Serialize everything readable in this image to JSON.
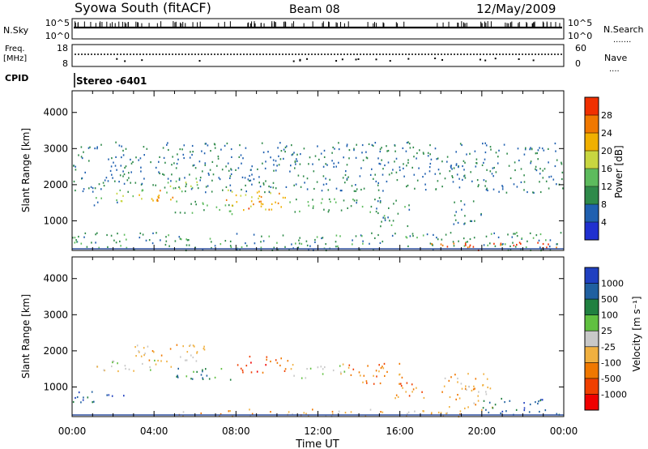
{
  "header": {
    "station": "Syowa South (fitACF)",
    "beam": "Beam 08",
    "date": "12/May/2009"
  },
  "status": {
    "left_labels": {
      "nsky": "N.Sky",
      "freq_line1": "Freq.",
      "freq_line2": "[MHz]",
      "cpid": "CPID"
    },
    "right_labels": {
      "nsearch": "N.Search",
      "nave": "Nave"
    },
    "nsky_ticks": [
      "10^5",
      "10^0"
    ],
    "nsearch_ticks": [
      "10^5",
      "10^0"
    ],
    "freq_ticks": [
      "18",
      "8"
    ],
    "nave_ticks": [
      "60",
      "0"
    ],
    "cpid_text": "Stereo -6401"
  },
  "colors": {
    "power": [
      "#2030d0",
      "#2060b0",
      "#2f8a4a",
      "#5dbb5d",
      "#c8d640",
      "#f0b000",
      "#f07800",
      "#f03000",
      "#e80000"
    ],
    "velocity": [
      "#f00000",
      "#f04000",
      "#f07800",
      "#f0b040",
      "#c8c8c8",
      "#60c040",
      "#208040",
      "#2060a0",
      "#2040c0"
    ]
  },
  "chart_data": [
    {
      "type": "heatmap",
      "name": "power",
      "ylabel": "Slant Range [km]",
      "xlabel": "",
      "x_ticks": [
        "00:00",
        "04:00",
        "08:00",
        "12:00",
        "16:00",
        "20:00",
        "00:00"
      ],
      "y_ticks": [
        "1000",
        "2000",
        "3000",
        "4000"
      ],
      "xlim": [
        0,
        24
      ],
      "ylim": [
        180,
        4600
      ],
      "colorbar": {
        "label": "Power [dB]",
        "range": [
          0,
          32
        ],
        "ticks": [
          "4",
          "8",
          "12",
          "16",
          "20",
          "24",
          "28"
        ]
      },
      "scatter_regions": [
        {
          "t": [
            1.0,
            2.5
          ],
          "r": [
            1450,
            1700
          ],
          "v": 8
        },
        {
          "t": [
            2.0,
            3.5
          ],
          "r": [
            1500,
            1900
          ],
          "v": 14
        },
        {
          "t": [
            3.0,
            5.0
          ],
          "r": [
            1550,
            1900
          ],
          "v": 22
        },
        {
          "t": [
            4.5,
            6.5
          ],
          "r": [
            1800,
            2200
          ],
          "v": 14
        },
        {
          "t": [
            5.0,
            8.0
          ],
          "r": [
            1200,
            1600
          ],
          "v": 10
        },
        {
          "t": [
            7.5,
            10.5
          ],
          "r": [
            1300,
            1900
          ],
          "v": 20
        },
        {
          "t": [
            8.5,
            10.0
          ],
          "r": [
            1350,
            1600
          ],
          "v": 24
        },
        {
          "t": [
            10.5,
            13.5
          ],
          "r": [
            1250,
            1650
          ],
          "v": 10
        },
        {
          "t": [
            13.0,
            15.0
          ],
          "r": [
            1400,
            1700
          ],
          "v": 8
        },
        {
          "t": [
            14.5,
            16.5
          ],
          "r": [
            850,
            1600
          ],
          "v": 8
        },
        {
          "t": [
            18.5,
            20.0
          ],
          "r": [
            900,
            1600
          ],
          "v": 6
        },
        {
          "t": [
            0.0,
            24.0
          ],
          "r": [
            200,
            700
          ],
          "v": 8
        },
        {
          "t": [
            17.0,
            24.0
          ],
          "r": [
            200,
            420
          ],
          "v": 26
        },
        {
          "t": [
            0.0,
            24.0
          ],
          "r": [
            1800,
            3200
          ],
          "v": 6
        }
      ]
    },
    {
      "type": "heatmap",
      "name": "velocity",
      "ylabel": "Slant Range [km]",
      "xlabel": "Time UT",
      "x_ticks": [
        "00:00",
        "04:00",
        "08:00",
        "12:00",
        "16:00",
        "20:00",
        "00:00"
      ],
      "y_ticks": [
        "1000",
        "2000",
        "3000",
        "4000"
      ],
      "xlim": [
        0,
        24
      ],
      "ylim": [
        180,
        4600
      ],
      "colorbar": {
        "label": "Velocity [m s⁻¹]",
        "ticks": [
          "-1000",
          "-500",
          "-100",
          "-25",
          "25",
          "100",
          "500",
          "1000"
        ]
      },
      "scatter_regions": [
        {
          "t": [
            0.0,
            3.0
          ],
          "r": [
            600,
            900
          ],
          "v": 7
        },
        {
          "t": [
            1.0,
            4.0
          ],
          "r": [
            1450,
            1800
          ],
          "v": 4
        },
        {
          "t": [
            3.0,
            6.5
          ],
          "r": [
            1550,
            2200
          ],
          "v": 3
        },
        {
          "t": [
            5.0,
            8.0
          ],
          "r": [
            1200,
            1600
          ],
          "v": 6
        },
        {
          "t": [
            8.0,
            10.5
          ],
          "r": [
            1400,
            1900
          ],
          "v": 1
        },
        {
          "t": [
            10.5,
            13.5
          ],
          "r": [
            1250,
            1650
          ],
          "v": 4
        },
        {
          "t": [
            13.5,
            16.5
          ],
          "r": [
            1100,
            1700
          ],
          "v": 2
        },
        {
          "t": [
            15.5,
            17.5
          ],
          "r": [
            700,
            1100
          ],
          "v": 2
        },
        {
          "t": [
            18.0,
            20.5
          ],
          "r": [
            400,
            1400
          ],
          "v": 3
        },
        {
          "t": [
            20.0,
            24.0
          ],
          "r": [
            250,
            700
          ],
          "v": 7
        },
        {
          "t": [
            5.0,
            20.0
          ],
          "r": [
            200,
            400
          ],
          "v": 3
        }
      ]
    }
  ]
}
